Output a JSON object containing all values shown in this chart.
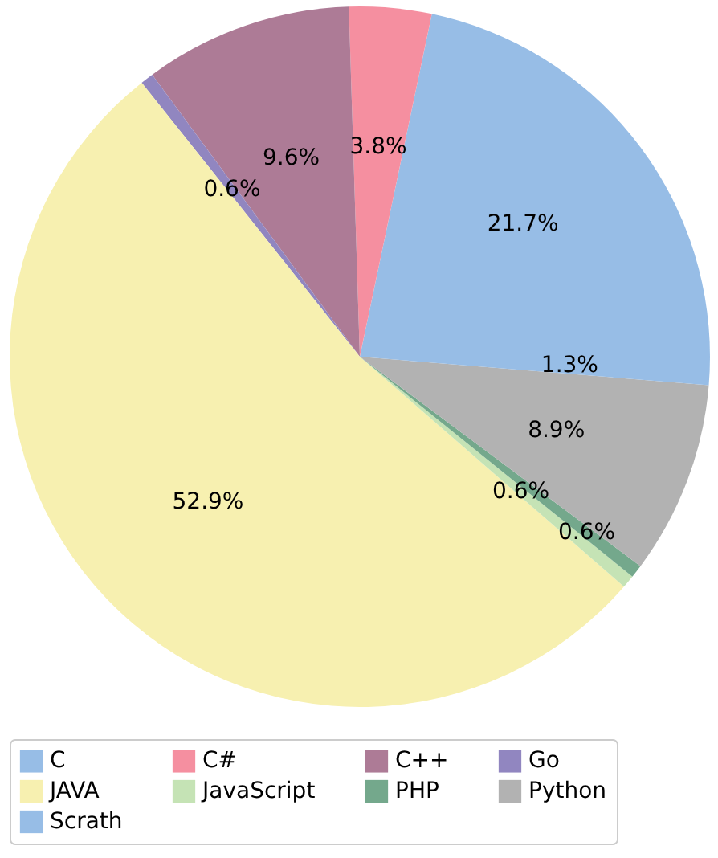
{
  "chart_data": {
    "type": "pie",
    "categories": [
      "C",
      "C#",
      "C++",
      "Go",
      "JAVA",
      "JavaScript",
      "PHP",
      "Python",
      "Scrath"
    ],
    "values": [
      21.7,
      3.8,
      9.6,
      0.6,
      52.9,
      0.6,
      0.6,
      8.9,
      1.3
    ],
    "value_labels": [
      "21.7%",
      "3.8%",
      "9.6%",
      "0.6%",
      "52.9%",
      "0.6%",
      "0.6%",
      "8.9%",
      "1.3%"
    ],
    "colors": [
      "#97bde6",
      "#f58fa0",
      "#ad7b96",
      "#9186c0",
      "#f7f0b0",
      "#c5e3b5",
      "#74a88c",
      "#b2b2b2",
      "#97bde6"
    ],
    "legend": "bottom"
  }
}
